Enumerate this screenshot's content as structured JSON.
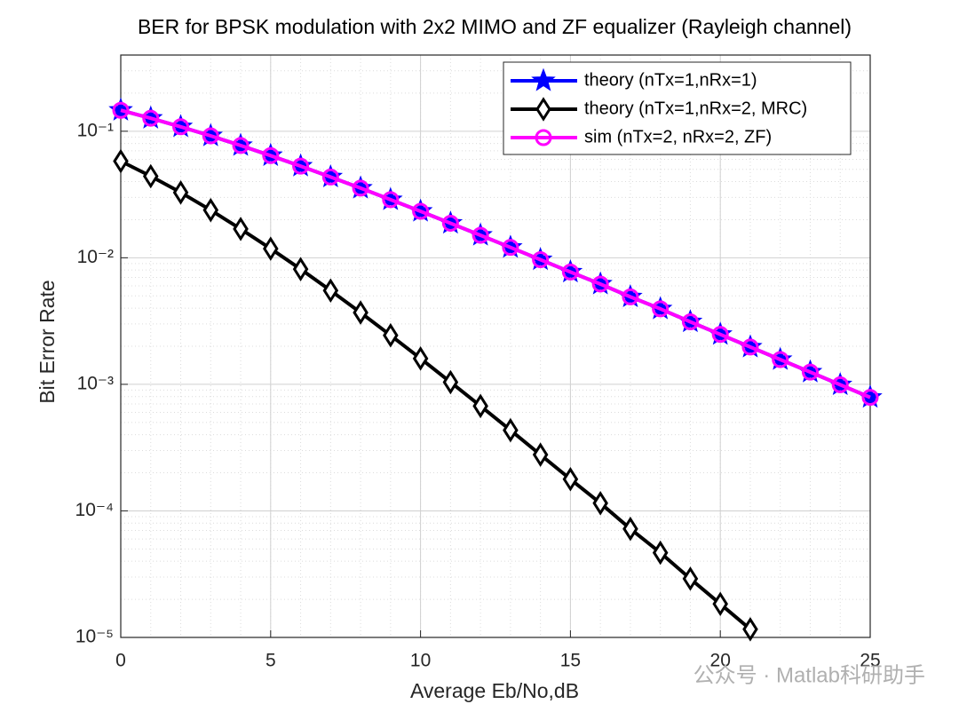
{
  "chart_data": {
    "type": "line",
    "title": "BER for BPSK modulation with 2x2 MIMO and ZF equalizer (Rayleigh channel)",
    "xlabel": "Average Eb/No,dB",
    "ylabel": "Bit Error Rate",
    "yscale": "log",
    "grid": true,
    "minor_grid": true,
    "legend_position": "northeast",
    "watermark": "公众号 · Matlab科研助手",
    "x": [
      0,
      1,
      2,
      3,
      4,
      5,
      6,
      7,
      8,
      9,
      10,
      11,
      12,
      13,
      14,
      15,
      16,
      17,
      18,
      19,
      20,
      21,
      22,
      23,
      24,
      25
    ],
    "series": [
      {
        "name": "theory (nTx=1,nRx=1)",
        "color": "#0000ff",
        "marker": "star",
        "values": [
          0.1464,
          0.1267,
          0.1085,
          0.0919,
          0.0771,
          0.0642,
          0.053,
          0.0435,
          0.0355,
          0.0288,
          0.0233,
          0.01875,
          0.01507,
          0.01208,
          0.00966,
          0.00772,
          0.0062,
          0.00491,
          0.00395,
          0.00312,
          0.00248,
          0.00197,
          0.00157,
          0.00125,
          0.000992,
          0.000789
        ]
      },
      {
        "name": "theory (nTx=1,nRx=2, MRC)",
        "color": "#000000",
        "marker": "diamond",
        "values": [
          0.058,
          0.0441,
          0.0328,
          0.0238,
          0.0169,
          0.0118,
          0.00813,
          0.00551,
          0.00369,
          0.00244,
          0.0016,
          0.00104,
          0.000674,
          0.000434,
          0.000278,
          0.000178,
          0.000115,
          7.21e-05,
          4.67e-05,
          2.91e-05,
          1.84e-05,
          1.16e-05,
          null,
          null,
          null,
          null
        ]
      },
      {
        "name": "sim (nTx=2, nRx=2, ZF)",
        "color": "#ff00ff",
        "marker": "circle",
        "values": [
          0.1464,
          0.1267,
          0.1085,
          0.0919,
          0.0771,
          0.0642,
          0.053,
          0.0435,
          0.0355,
          0.0288,
          0.0233,
          0.01875,
          0.01507,
          0.01208,
          0.00966,
          0.00772,
          0.0062,
          0.00491,
          0.00395,
          0.00312,
          0.00248,
          0.00197,
          0.00157,
          0.00125,
          0.000992,
          0.000789
        ]
      }
    ],
    "xlim": [
      0,
      25
    ],
    "xticks": [
      0,
      5,
      10,
      15,
      20,
      25
    ],
    "ylim": [
      1e-05,
      0.4
    ],
    "yticks": [
      {
        "value": 1e-05,
        "label": "10⁻⁵"
      },
      {
        "value": 0.0001,
        "label": "10⁻⁴"
      },
      {
        "value": 0.001,
        "label": "10⁻³"
      },
      {
        "value": 0.01,
        "label": "10⁻²"
      },
      {
        "value": 0.1,
        "label": "10⁻¹"
      }
    ]
  }
}
